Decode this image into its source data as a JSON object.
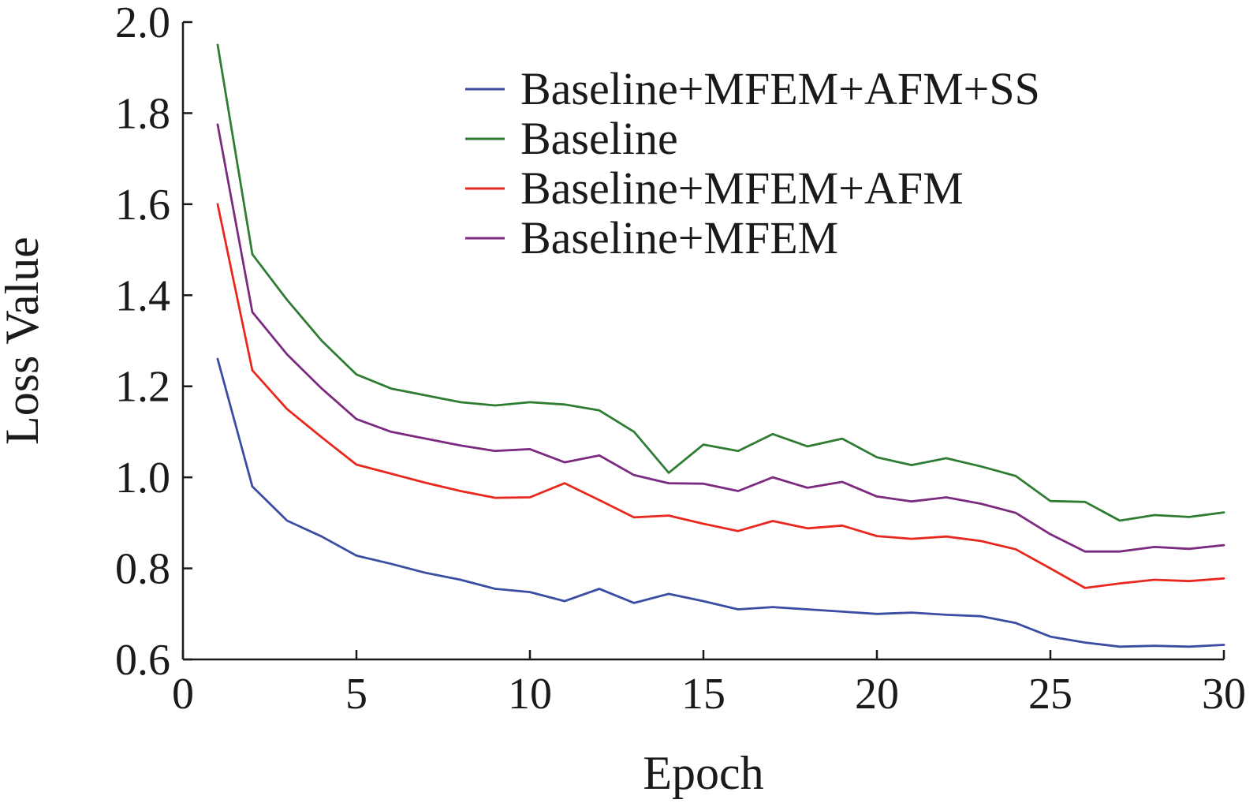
{
  "chart_data": {
    "type": "line",
    "xlabel": "Epoch",
    "ylabel": "Loss Value",
    "xlim": [
      0,
      30
    ],
    "ylim": [
      0.6,
      2.0
    ],
    "xticks": [
      0,
      5,
      10,
      15,
      20,
      25,
      30
    ],
    "yticks": [
      0.6,
      0.8,
      1.0,
      1.2,
      1.4,
      1.6,
      1.8,
      2.0
    ],
    "grid": false,
    "legend_position": "top-right",
    "x": [
      1,
      2,
      3,
      4,
      5,
      6,
      7,
      8,
      9,
      10,
      11,
      12,
      13,
      14,
      15,
      16,
      17,
      18,
      19,
      20,
      21,
      22,
      23,
      24,
      25,
      26,
      27,
      28,
      29,
      30
    ],
    "series": [
      {
        "name": "Baseline+MFEM+AFM+SS",
        "color": "#3b4da3",
        "values": [
          1.26,
          0.98,
          0.905,
          0.87,
          0.828,
          0.81,
          0.79,
          0.775,
          0.755,
          0.748,
          0.728,
          0.755,
          0.724,
          0.744,
          0.728,
          0.71,
          0.715,
          0.71,
          0.705,
          0.7,
          0.703,
          0.698,
          0.695,
          0.68,
          0.65,
          0.637,
          0.628,
          0.63,
          0.628,
          0.632
        ]
      },
      {
        "name": "Baseline",
        "color": "#2e7d32",
        "values": [
          1.95,
          1.49,
          1.39,
          1.3,
          1.226,
          1.195,
          1.18,
          1.165,
          1.158,
          1.165,
          1.16,
          1.147,
          1.1,
          1.01,
          1.072,
          1.058,
          1.095,
          1.068,
          1.085,
          1.044,
          1.027,
          1.042,
          1.024,
          1.003,
          0.948,
          0.946,
          0.905,
          0.917,
          0.913,
          0.923
        ]
      },
      {
        "name": "Baseline+MFEM+AFM",
        "color": "#e8281e",
        "values": [
          1.6,
          1.235,
          1.15,
          1.088,
          1.028,
          1.008,
          0.988,
          0.97,
          0.955,
          0.956,
          0.987,
          0.95,
          0.912,
          0.916,
          0.898,
          0.882,
          0.904,
          0.888,
          0.894,
          0.871,
          0.865,
          0.87,
          0.86,
          0.842,
          0.8,
          0.757,
          0.767,
          0.775,
          0.772,
          0.778
        ]
      },
      {
        "name": "Baseline+MFEM",
        "color": "#7b2a7f",
        "values": [
          1.775,
          1.363,
          1.27,
          1.195,
          1.128,
          1.1,
          1.085,
          1.07,
          1.058,
          1.062,
          1.033,
          1.048,
          1.005,
          0.987,
          0.986,
          0.97,
          1.0,
          0.977,
          0.99,
          0.958,
          0.947,
          0.956,
          0.942,
          0.922,
          0.875,
          0.837,
          0.837,
          0.847,
          0.843,
          0.851
        ]
      }
    ]
  }
}
